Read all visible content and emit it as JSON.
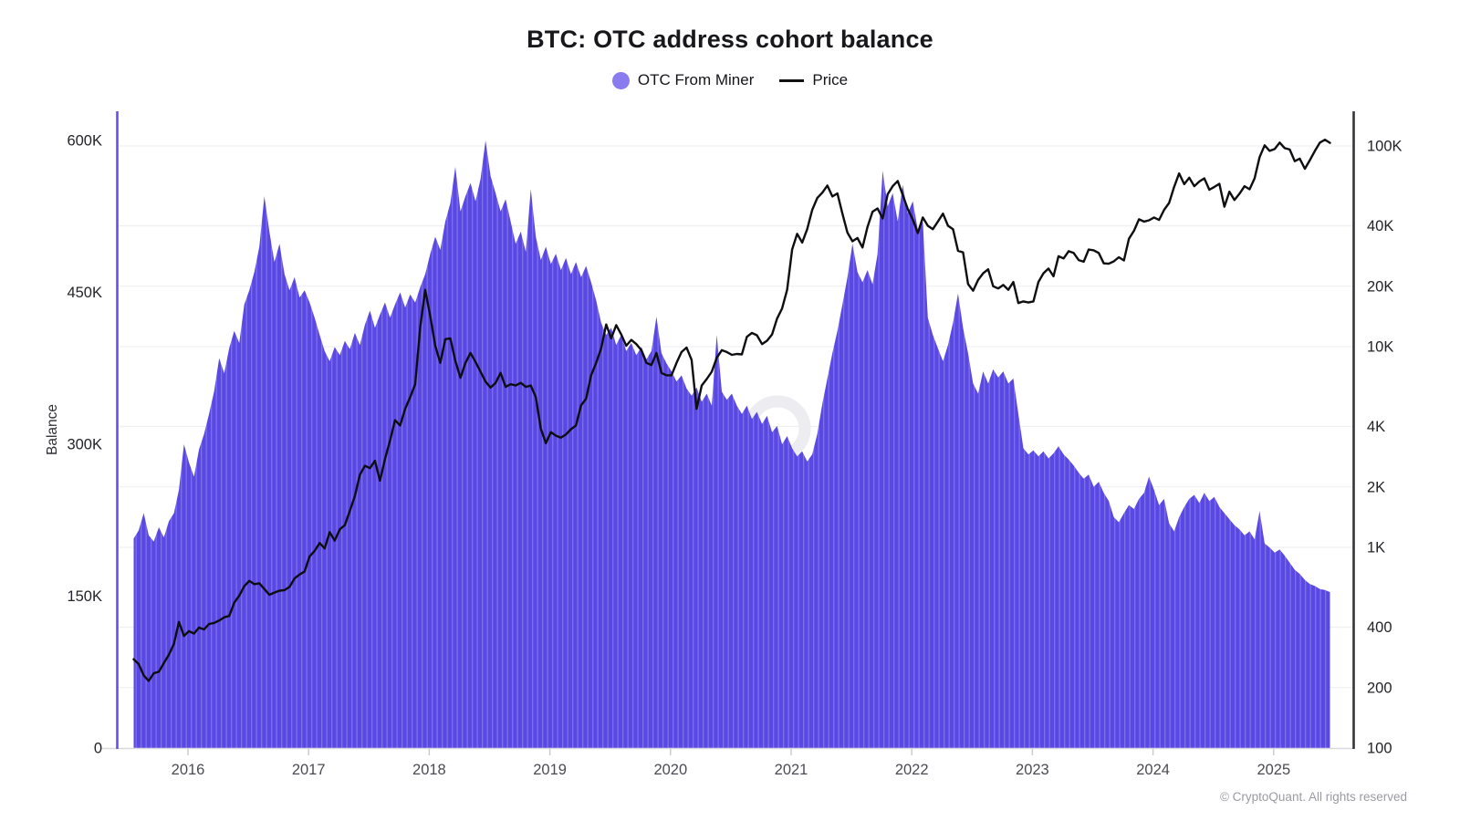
{
  "page": {
    "copyright": "© CryptoQuant. All rights reserved"
  },
  "chart_data": {
    "type": "area+line",
    "title": "BTC: OTC address cohort balance",
    "legend": [
      {
        "label": "OTC From Miner",
        "marker": "dot",
        "color": "#8a7bef"
      },
      {
        "label": "Price",
        "marker": "line",
        "color": "#111114"
      }
    ],
    "colors": {
      "area_base": "#5a48e2",
      "area_stripe": "#7e70ec",
      "price_line": "#0e0e11",
      "left_axis_line": "#6450e8",
      "right_axis_line": "#33333a",
      "baseline": "#d8d8dd",
      "gridline": "#f0f0f3",
      "watermark": "#ececf1"
    },
    "x_axis": {
      "range": [
        2015.55,
        2025.47
      ],
      "tick_years": [
        2016,
        2017,
        2018,
        2019,
        2020,
        2021,
        2022,
        2023,
        2024,
        2025
      ]
    },
    "left_axis": {
      "label": "Balance",
      "scale": "linear",
      "range": [
        0,
        600000
      ],
      "ticks": [
        {
          "value": 0,
          "label": "0"
        },
        {
          "value": 150000,
          "label": "150K"
        },
        {
          "value": 300000,
          "label": "300K"
        },
        {
          "value": 450000,
          "label": "450K"
        },
        {
          "value": 600000,
          "label": "600K"
        }
      ]
    },
    "right_axis": {
      "scale": "log",
      "range": [
        100,
        148000
      ],
      "ticks": [
        {
          "value": 100,
          "label": "100"
        },
        {
          "value": 200,
          "label": "200"
        },
        {
          "value": 400,
          "label": "400"
        },
        {
          "value": 1000,
          "label": "1K"
        },
        {
          "value": 2000,
          "label": "2K"
        },
        {
          "value": 4000,
          "label": "4K"
        },
        {
          "value": 10000,
          "label": "10K"
        },
        {
          "value": 20000,
          "label": "20K"
        },
        {
          "value": 40000,
          "label": "40K"
        },
        {
          "value": 100000,
          "label": "100K"
        }
      ]
    },
    "series": [
      {
        "name": "OTC From Miner",
        "type": "area",
        "axis": "left",
        "unit": "BTC (thousands)",
        "x_start": 2015.55,
        "x_step_years": 0.0416667,
        "values_k": [
          207,
          215,
          232,
          210,
          204,
          218,
          208,
          224,
          232,
          255,
          300,
          282,
          268,
          295,
          310,
          330,
          352,
          385,
          370,
          395,
          412,
          400,
          438,
          452,
          470,
          495,
          545,
          510,
          480,
          498,
          468,
          452,
          465,
          445,
          452,
          440,
          425,
          408,
          392,
          382,
          396,
          388,
          402,
          394,
          410,
          398,
          418,
          432,
          415,
          428,
          440,
          425,
          438,
          450,
          435,
          448,
          440,
          455,
          468,
          488,
          505,
          492,
          520,
          538,
          574,
          530,
          545,
          558,
          540,
          562,
          600,
          565,
          548,
          530,
          542,
          520,
          498,
          510,
          490,
          552,
          505,
          482,
          495,
          478,
          488,
          472,
          484,
          468,
          480,
          465,
          476,
          460,
          442,
          420,
          408,
          415,
          398,
          408,
          392,
          400,
          388,
          396,
          384,
          392,
          426,
          390,
          380,
          372,
          362,
          368,
          355,
          348,
          356,
          342,
          350,
          338,
          408,
          352,
          344,
          350,
          338,
          330,
          338,
          325,
          332,
          320,
          328,
          312,
          318,
          300,
          308,
          296,
          288,
          293,
          283,
          290,
          310,
          340,
          365,
          390,
          412,
          438,
          465,
          498,
          470,
          460,
          472,
          458,
          488,
          570,
          535,
          548,
          520,
          556,
          528,
          540,
          512,
          520,
          425,
          408,
          395,
          382,
          398,
          420,
          449,
          415,
          390,
          360,
          350,
          372,
          360,
          374,
          366,
          372,
          360,
          365,
          330,
          296,
          290,
          294,
          288,
          293,
          286,
          291,
          298,
          290,
          285,
          279,
          272,
          266,
          270,
          258,
          263,
          252,
          244,
          228,
          223,
          232,
          240,
          236,
          246,
          252,
          268,
          255,
          240,
          246,
          222,
          214,
          228,
          238,
          246,
          250,
          242,
          252,
          244,
          248,
          238,
          232,
          226,
          220,
          216,
          210,
          214,
          206,
          234,
          202,
          198,
          193,
          196,
          190,
          183,
          176,
          172,
          166,
          162,
          160,
          157,
          156,
          154
        ]
      },
      {
        "name": "Price",
        "type": "line",
        "axis": "right",
        "unit": "USD",
        "x_start": 2015.55,
        "x_step_years": 0.0416667,
        "values_usd": [
          277,
          262,
          230,
          216,
          236,
          240,
          265,
          292,
          330,
          425,
          362,
          382,
          372,
          398,
          390,
          415,
          420,
          432,
          448,
          455,
          530,
          575,
          640,
          680,
          655,
          662,
          620,
          580,
          595,
          608,
          612,
          635,
          700,
          732,
          758,
          902,
          960,
          1050,
          988,
          1190,
          1080,
          1230,
          1290,
          1520,
          1800,
          2300,
          2550,
          2480,
          2700,
          2150,
          2750,
          3400,
          4300,
          4050,
          4900,
          5600,
          6500,
          12500,
          19200,
          14200,
          10100,
          8300,
          10900,
          11000,
          8500,
          7000,
          8300,
          9300,
          8400,
          7500,
          6700,
          6250,
          6600,
          7400,
          6300,
          6500,
          6400,
          6600,
          6300,
          6400,
          5600,
          3900,
          3300,
          3750,
          3600,
          3520,
          3650,
          3880,
          4050,
          5100,
          5500,
          7200,
          8300,
          9800,
          12900,
          11000,
          12800,
          11500,
          10100,
          10800,
          10300,
          9600,
          8300,
          8100,
          9300,
          7400,
          7200,
          7200,
          8300,
          9400,
          9900,
          8600,
          4900,
          6400,
          6900,
          7500,
          8800,
          9600,
          9400,
          9100,
          9200,
          9150,
          11200,
          11700,
          11400,
          10300,
          10700,
          11500,
          13800,
          15500,
          19200,
          30500,
          36500,
          33000,
          38500,
          48000,
          55000,
          58500,
          63500,
          56000,
          58000,
          46000,
          37000,
          33500,
          34800,
          31200,
          39500,
          47000,
          48800,
          43500,
          57500,
          63000,
          66900,
          57000,
          48500,
          43000,
          36800,
          44000,
          40000,
          38500,
          42000,
          46000,
          40000,
          38500,
          30000,
          29500,
          20500,
          19000,
          21500,
          23200,
          24300,
          20000,
          19500,
          20300,
          19200,
          21000,
          16500,
          16800,
          16600,
          16800,
          21000,
          23200,
          24500,
          22400,
          28200,
          27500,
          29900,
          29300,
          27000,
          26500,
          30500,
          30200,
          29300,
          26000,
          25900,
          26600,
          27900,
          26900,
          34500,
          37800,
          43100,
          42000,
          42600,
          44000,
          42800,
          48000,
          52000,
          62500,
          73000,
          64500,
          69500,
          63000,
          66500,
          69000,
          60500,
          62500,
          64800,
          49800,
          59200,
          53800,
          57800,
          63000,
          60800,
          69000,
          88000,
          100700,
          94500,
          96500,
          104000,
          97500,
          96000,
          84000,
          86500,
          77000,
          85000,
          94500,
          104000,
          107500,
          103600
        ]
      }
    ]
  }
}
